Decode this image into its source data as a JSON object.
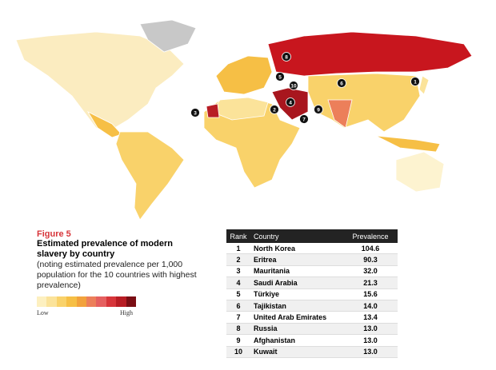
{
  "figure": {
    "label": "Figure 5",
    "title": "Estimated prevalence of modern slavery by country",
    "note": "(noting estimated prevalence per 1,000 population for the 10 countries with highest prevalence)"
  },
  "legend": {
    "low": "Low",
    "high": "High"
  },
  "table": {
    "columns": [
      "Rank",
      "Country",
      "Prevalence"
    ],
    "rows": [
      [
        1,
        "North Korea",
        "104.6"
      ],
      [
        2,
        "Eritrea",
        "90.3"
      ],
      [
        3,
        "Mauritania",
        "32.0"
      ],
      [
        4,
        "Saudi Arabia",
        "21.3"
      ],
      [
        5,
        "Türkiye",
        "15.6"
      ],
      [
        6,
        "Tajikistan",
        "14.0"
      ],
      [
        7,
        "United Arab Emirates",
        "13.4"
      ],
      [
        8,
        "Russia",
        "13.0"
      ],
      [
        9,
        "Afghanistan",
        "13.0"
      ],
      [
        10,
        "Kuwait",
        "13.0"
      ]
    ]
  }
}
